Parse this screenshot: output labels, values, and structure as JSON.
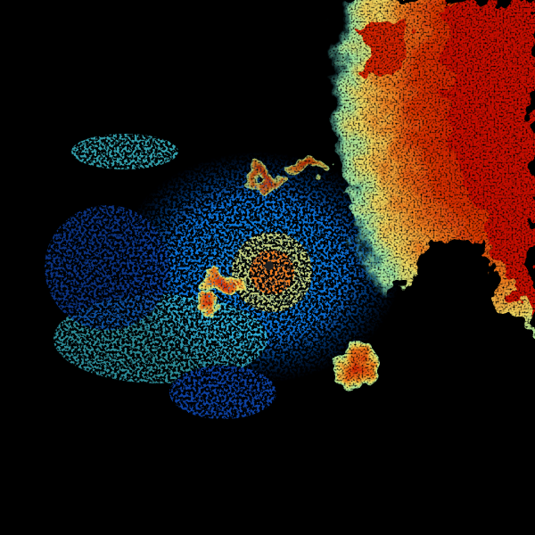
{
  "radar": {
    "background": "#000000",
    "palette": {
      "light_blue": "#0a6fd6",
      "dark_blue": "#0b3fa0",
      "cyan": "#3fc8d8",
      "green": "#9fe6a0",
      "yellow": "#f0e060",
      "orange": "#f07a1a",
      "red": "#d42000",
      "dark_red": "#b01000"
    },
    "center_marker_color": "#202020"
  }
}
